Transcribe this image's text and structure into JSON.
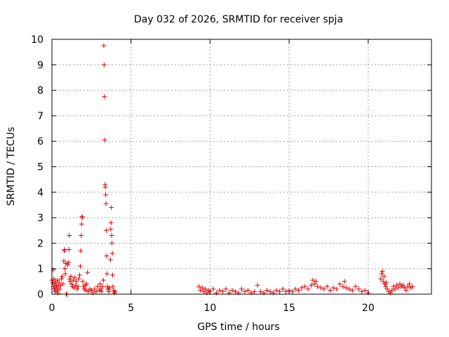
{
  "chart_data": {
    "type": "scatter",
    "title": "Day 032 of 2026, SRMTID for receiver spja",
    "xlabel": "GPS time / hours",
    "ylabel": "SRMTID / TECUs",
    "xlim": [
      0,
      24
    ],
    "ylim": [
      0,
      10
    ],
    "xticks": [
      0,
      5,
      10,
      15,
      20
    ],
    "yticks": [
      0,
      1,
      2,
      3,
      4,
      5,
      6,
      7,
      8,
      9,
      10
    ],
    "grid": true,
    "marker_color": "#e00000",
    "series": [
      {
        "name": "SRMTID",
        "points": [
          [
            0.0,
            0.55
          ],
          [
            0.05,
            0.45
          ],
          [
            0.08,
            0.95
          ],
          [
            0.1,
            0.3
          ],
          [
            0.12,
            0.6
          ],
          [
            0.15,
            0.2
          ],
          [
            0.18,
            0.4
          ],
          [
            0.2,
            0.1
          ],
          [
            0.22,
            0.5
          ],
          [
            0.25,
            0.25
          ],
          [
            0.3,
            0.35
          ],
          [
            0.32,
            0.15
          ],
          [
            0.35,
            0.55
          ],
          [
            0.38,
            0.05
          ],
          [
            0.4,
            0.3
          ],
          [
            0.45,
            0.45
          ],
          [
            0.5,
            0.2
          ],
          [
            0.55,
            0.35
          ],
          [
            0.6,
            0.6
          ],
          [
            0.65,
            0.7
          ],
          [
            0.7,
            0.4
          ],
          [
            0.75,
            1.3
          ],
          [
            0.78,
            1.7
          ],
          [
            0.8,
            1.75
          ],
          [
            0.82,
            1.0
          ],
          [
            0.85,
            0.8
          ],
          [
            0.88,
            1.2
          ],
          [
            0.9,
            0.0
          ],
          [
            0.95,
            0.0
          ],
          [
            1.0,
            1.15
          ],
          [
            1.05,
            1.25
          ],
          [
            1.08,
            1.75
          ],
          [
            1.1,
            2.3
          ],
          [
            1.12,
            0.6
          ],
          [
            1.15,
            0.5
          ],
          [
            1.2,
            0.7
          ],
          [
            1.25,
            0.4
          ],
          [
            1.3,
            0.3
          ],
          [
            1.35,
            0.55
          ],
          [
            1.4,
            0.25
          ],
          [
            1.45,
            0.65
          ],
          [
            1.5,
            0.35
          ],
          [
            1.55,
            0.5
          ],
          [
            1.6,
            0.2
          ],
          [
            1.65,
            0.3
          ],
          [
            1.7,
            0.6
          ],
          [
            1.75,
            0.75
          ],
          [
            1.8,
            1.1
          ],
          [
            1.82,
            1.7
          ],
          [
            1.85,
            2.3
          ],
          [
            1.88,
            2.75
          ],
          [
            1.9,
            3.05
          ],
          [
            1.92,
            3.0
          ],
          [
            1.95,
            0.5
          ],
          [
            2.0,
            0.3
          ],
          [
            2.05,
            0.2
          ],
          [
            2.1,
            0.35
          ],
          [
            2.15,
            0.15
          ],
          [
            2.2,
            0.4
          ],
          [
            2.25,
            0.85
          ],
          [
            2.3,
            0.1
          ],
          [
            2.4,
            0.2
          ],
          [
            2.5,
            0.15
          ],
          [
            2.6,
            0.05
          ],
          [
            2.7,
            0.2
          ],
          [
            2.8,
            0.1
          ],
          [
            2.9,
            0.3
          ],
          [
            3.0,
            0.15
          ],
          [
            3.05,
            0.4
          ],
          [
            3.1,
            0.2
          ],
          [
            3.15,
            0.1
          ],
          [
            3.2,
            0.3
          ],
          [
            3.25,
            0.55
          ],
          [
            3.28,
            9.75
          ],
          [
            3.3,
            9.0
          ],
          [
            3.32,
            7.75
          ],
          [
            3.34,
            6.05
          ],
          [
            3.36,
            4.3
          ],
          [
            3.38,
            4.2
          ],
          [
            3.4,
            3.9
          ],
          [
            3.42,
            3.55
          ],
          [
            3.44,
            2.5
          ],
          [
            3.46,
            1.5
          ],
          [
            3.48,
            0.8
          ],
          [
            3.5,
            0.3
          ],
          [
            3.55,
            0.2
          ],
          [
            3.6,
            0.1
          ],
          [
            3.65,
            0.25
          ],
          [
            3.7,
            1.35
          ],
          [
            3.72,
            2.55
          ],
          [
            3.74,
            2.8
          ],
          [
            3.76,
            3.4
          ],
          [
            3.78,
            2.3
          ],
          [
            3.8,
            2.0
          ],
          [
            3.82,
            1.6
          ],
          [
            3.84,
            0.75
          ],
          [
            3.86,
            0.3
          ],
          [
            3.9,
            0.15
          ],
          [
            3.95,
            0.05
          ],
          [
            4.0,
            0.1
          ],
          [
            9.3,
            0.3
          ],
          [
            9.4,
            0.15
          ],
          [
            9.5,
            0.25
          ],
          [
            9.6,
            0.1
          ],
          [
            9.7,
            0.2
          ],
          [
            9.8,
            0.05
          ],
          [
            9.9,
            0.15
          ],
          [
            10.0,
            0.1
          ],
          [
            10.2,
            0.2
          ],
          [
            10.4,
            0.05
          ],
          [
            10.6,
            0.15
          ],
          [
            10.8,
            0.1
          ],
          [
            11.0,
            0.2
          ],
          [
            11.2,
            0.05
          ],
          [
            11.4,
            0.15
          ],
          [
            11.6,
            0.1
          ],
          [
            11.8,
            0.05
          ],
          [
            12.0,
            0.2
          ],
          [
            12.2,
            0.1
          ],
          [
            12.4,
            0.15
          ],
          [
            12.6,
            0.05
          ],
          [
            12.8,
            0.1
          ],
          [
            13.0,
            0.35
          ],
          [
            13.2,
            0.1
          ],
          [
            13.4,
            0.05
          ],
          [
            13.6,
            0.15
          ],
          [
            13.8,
            0.1
          ],
          [
            14.0,
            0.05
          ],
          [
            14.2,
            0.15
          ],
          [
            14.4,
            0.1
          ],
          [
            14.6,
            0.2
          ],
          [
            14.8,
            0.1
          ],
          [
            15.0,
            0.15
          ],
          [
            15.2,
            0.1
          ],
          [
            15.4,
            0.2
          ],
          [
            15.6,
            0.15
          ],
          [
            15.8,
            0.25
          ],
          [
            16.0,
            0.3
          ],
          [
            16.2,
            0.2
          ],
          [
            16.4,
            0.35
          ],
          [
            16.5,
            0.55
          ],
          [
            16.6,
            0.4
          ],
          [
            16.7,
            0.5
          ],
          [
            16.8,
            0.3
          ],
          [
            17.0,
            0.25
          ],
          [
            17.2,
            0.2
          ],
          [
            17.4,
            0.3
          ],
          [
            17.6,
            0.15
          ],
          [
            17.8,
            0.25
          ],
          [
            18.0,
            0.2
          ],
          [
            18.2,
            0.4
          ],
          [
            18.4,
            0.3
          ],
          [
            18.5,
            0.5
          ],
          [
            18.6,
            0.25
          ],
          [
            18.8,
            0.2
          ],
          [
            19.0,
            0.15
          ],
          [
            19.2,
            0.3
          ],
          [
            19.4,
            0.2
          ],
          [
            19.6,
            0.1
          ],
          [
            19.8,
            0.15
          ],
          [
            20.0,
            0.05
          ],
          [
            20.8,
            0.6
          ],
          [
            20.85,
            0.8
          ],
          [
            20.9,
            0.9
          ],
          [
            20.95,
            0.5
          ],
          [
            21.0,
            0.7
          ],
          [
            21.05,
            0.4
          ],
          [
            21.1,
            0.3
          ],
          [
            21.15,
            0.45
          ],
          [
            21.2,
            0.2
          ],
          [
            21.3,
            0.1
          ],
          [
            21.4,
            0.05
          ],
          [
            21.5,
            0.15
          ],
          [
            21.6,
            0.3
          ],
          [
            21.7,
            0.2
          ],
          [
            21.8,
            0.35
          ],
          [
            21.9,
            0.25
          ],
          [
            22.0,
            0.4
          ],
          [
            22.1,
            0.3
          ],
          [
            22.2,
            0.35
          ],
          [
            22.3,
            0.25
          ],
          [
            22.4,
            0.15
          ],
          [
            22.5,
            0.3
          ],
          [
            22.6,
            0.4
          ],
          [
            22.7,
            0.25
          ],
          [
            22.8,
            0.3
          ]
        ]
      }
    ]
  }
}
